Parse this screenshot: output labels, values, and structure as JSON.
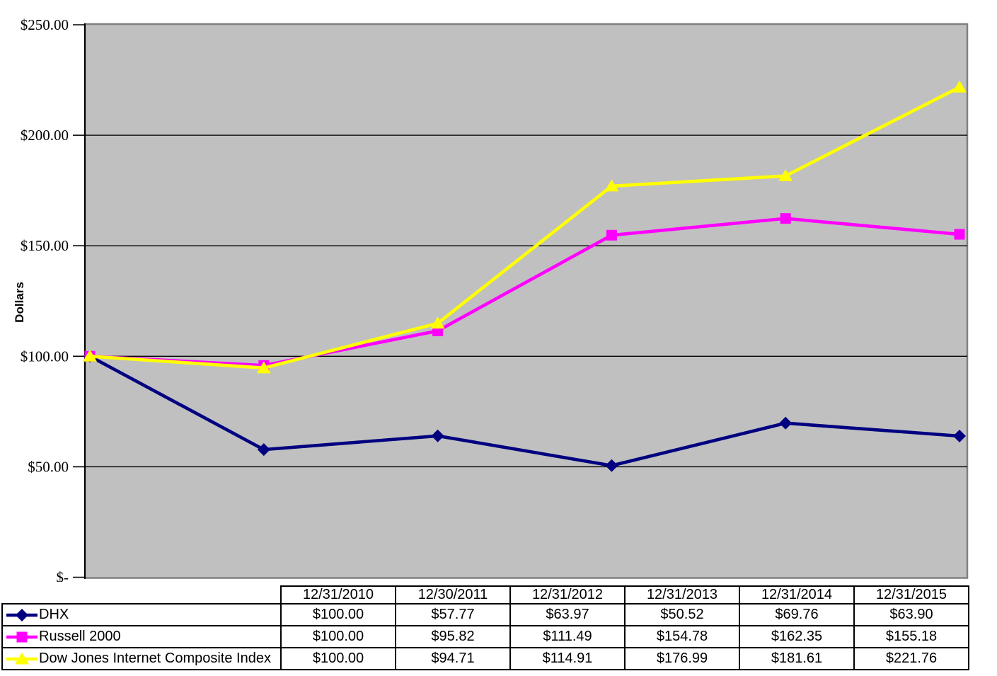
{
  "chart_data": {
    "type": "line",
    "title": "",
    "xlabel": "",
    "ylabel": "Dollars",
    "ylim": [
      0,
      250
    ],
    "grid": "horizontal",
    "plot_bg_color": "#c0c0c0",
    "plot_border_color": "#808080",
    "gridline_color": "#000000",
    "axis_color": "#000000",
    "legend_position": "table-left-bottom",
    "categories": [
      "12/31/2010",
      "12/30/2011",
      "12/31/2012",
      "12/31/2013",
      "12/31/2014",
      "12/31/2015"
    ],
    "y_ticks": [
      {
        "value": 250,
        "label": "$250.00"
      },
      {
        "value": 200,
        "label": "$200.00"
      },
      {
        "value": 150,
        "label": "$150.00"
      },
      {
        "value": 100,
        "label": "$100.00"
      },
      {
        "value": 50,
        "label": "$50.00"
      },
      {
        "value": 0,
        "label": "$-"
      }
    ],
    "series": [
      {
        "name": "DHX",
        "color": "#000080",
        "marker": "diamond",
        "values": [
          100.0,
          57.77,
          63.97,
          50.52,
          69.76,
          63.9
        ]
      },
      {
        "name": "Russell 2000",
        "color": "#ff00ff",
        "marker": "square",
        "values": [
          100.0,
          95.82,
          111.49,
          154.78,
          162.35,
          155.18
        ]
      },
      {
        "name": "Dow Jones Internet Composite Index",
        "color": "#ffff00",
        "marker": "triangle",
        "values": [
          100.0,
          94.71,
          114.91,
          176.99,
          181.61,
          221.76
        ]
      }
    ]
  },
  "table": {
    "header": [
      "",
      "12/31/2010",
      "12/30/2011",
      "12/31/2012",
      "12/31/2013",
      "12/31/2014",
      "12/31/2015"
    ],
    "rows": [
      {
        "name": "DHX",
        "values": [
          "$100.00",
          "$57.77",
          "$63.97",
          "$50.52",
          "$69.76",
          "$63.90"
        ]
      },
      {
        "name": "Russell 2000",
        "values": [
          "$100.00",
          "$95.82",
          "$111.49",
          "$154.78",
          "$162.35",
          "$155.18"
        ]
      },
      {
        "name": "Dow Jones Internet Composite Index",
        "values": [
          "$100.00",
          "$94.71",
          "$114.91",
          "$176.99",
          "$181.61",
          "$221.76"
        ]
      }
    ]
  }
}
